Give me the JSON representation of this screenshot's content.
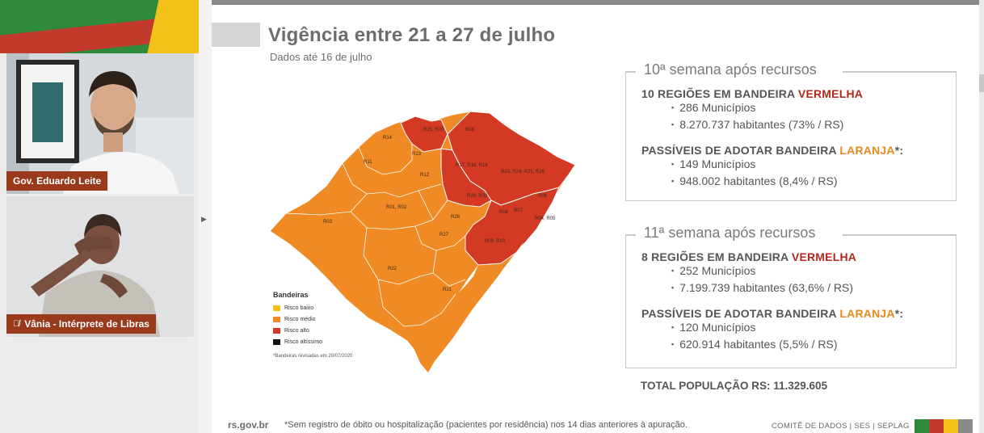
{
  "colors": {
    "green": "#2f8a3c",
    "red": "#c23a2c",
    "yellow": "#f2c21a",
    "risk_low": "#f2c21a",
    "risk_medium": "#f08a24",
    "risk_high": "#d43a23",
    "risk_very_high": "#111111",
    "name_tag_bg": "#9a3a1d"
  },
  "participants": [
    {
      "name": "Gov. Eduardo Leite"
    },
    {
      "name": "Vânia - Intérprete de Libras",
      "icon": "mic-muted-icon"
    }
  ],
  "slide": {
    "title": "Vigência entre 21 a 27 de julho",
    "subtitle": "Dados até 16 de julho",
    "map": {
      "regions": [
        "R14",
        "R15, R20",
        "R16",
        "R11",
        "R13",
        "R17, R18, R19",
        "R23, R24, R25, R26",
        "R12",
        "R29, R30",
        "R06",
        "R01, R02",
        "R28",
        "R08",
        "R07",
        "R03",
        "R04, R05",
        "R27",
        "R09, R10",
        "R22",
        "R21"
      ],
      "legend_title": "Bandeiras",
      "legend": [
        {
          "label": "Risco baixo"
        },
        {
          "label": "Risco médio"
        },
        {
          "label": "Risco alto"
        },
        {
          "label": "Risco altíssimo"
        }
      ],
      "note": "*Bandeiras revisadas em 20/07/2020"
    },
    "week10": {
      "legend": "10ª semana após recursos",
      "heading_prefix": "10 REGIÕES EM BANDEIRA ",
      "heading_color_word": "VERMELHA",
      "bullets1": [
        "286 Municípios",
        "8.270.737 habitantes (73% / RS)"
      ],
      "heading2_prefix": "PASSÍVEIS DE ADOTAR BANDEIRA ",
      "heading2_color_word": "LARANJA",
      "heading2_suffix": "*:",
      "bullets2": [
        "149 Municípios",
        "948.002 habitantes (8,4% / RS)"
      ]
    },
    "week11": {
      "legend": "11ª semana após recursos",
      "heading_prefix": "8 REGIÕES EM BANDEIRA ",
      "heading_color_word": "VERMELHA",
      "bullets1": [
        "252 Municípios",
        "7.199.739 habitantes (63,6% / RS)"
      ],
      "heading2_prefix": "PASSÍVEIS DE ADOTAR BANDEIRA ",
      "heading2_color_word": "LARANJA",
      "heading2_suffix": "*:",
      "bullets2": [
        "120 Municípios",
        "620.914 habitantes (5,5% / RS)"
      ]
    },
    "total": "TOTAL POPULAÇÃO RS: 11.329.605",
    "footer": {
      "site": "rs.gov.br",
      "note": "*Sem registro de óbito ou hospitalização (pacientes por residência) nos 14 dias anteriores à apuração.",
      "credit": "COMITÊ DE DADOS | SES | SEPLAG"
    }
  }
}
